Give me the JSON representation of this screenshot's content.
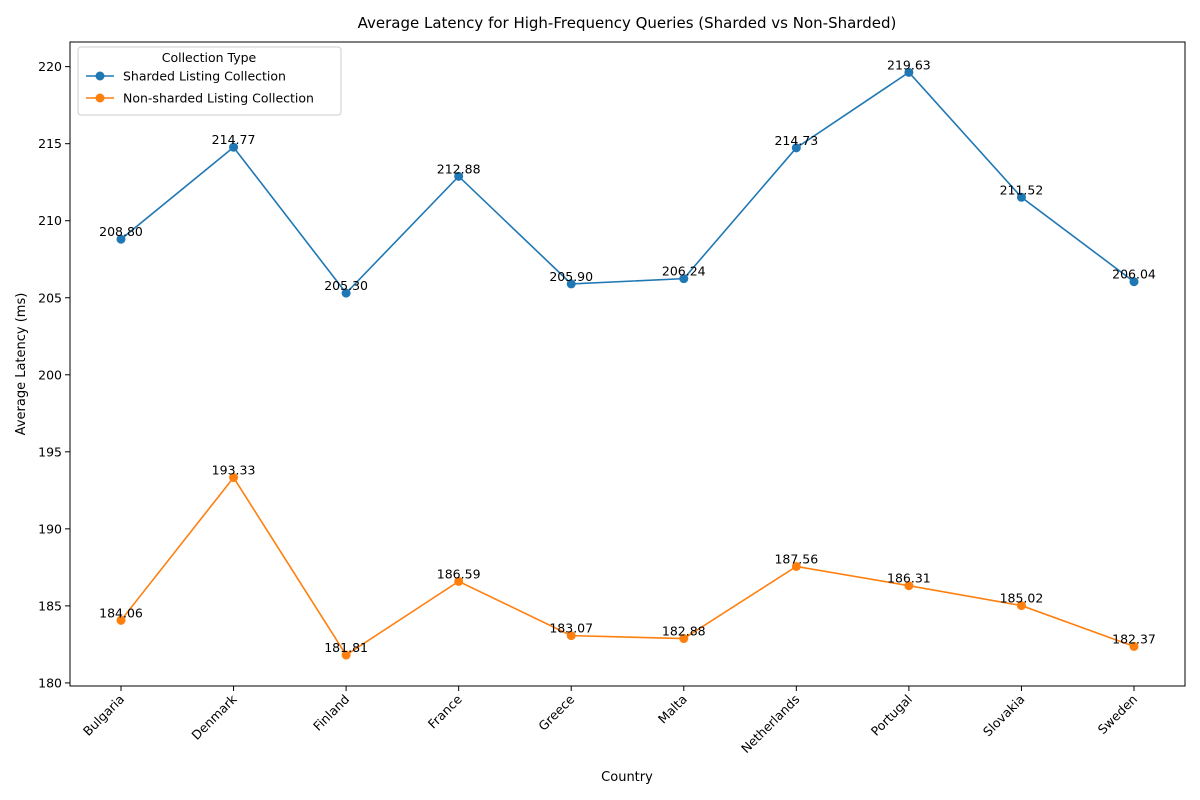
{
  "chart_data": {
    "type": "line",
    "title": "Average Latency for High-Frequency Queries (Sharded vs Non-Sharded)",
    "xlabel": "Country",
    "ylabel": "Average Latency (ms)",
    "categories": [
      "Bulgaria",
      "Denmark",
      "Finland",
      "France",
      "Greece",
      "Malta",
      "Netherlands",
      "Portugal",
      "Slovakia",
      "Sweden"
    ],
    "ylim": [
      179.8,
      221.6
    ],
    "yticks": [
      180,
      185,
      190,
      195,
      200,
      205,
      210,
      215,
      220
    ],
    "grid": false,
    "legend": {
      "title": "Collection Type",
      "placement": "top-left"
    },
    "series": [
      {
        "name": "Sharded Listing Collection",
        "color": "#1f77b4",
        "values": [
          208.8,
          214.77,
          205.3,
          212.88,
          205.9,
          206.24,
          214.73,
          219.63,
          211.52,
          206.04
        ],
        "labels": [
          "208.80",
          "214.77",
          "205.30",
          "212.88",
          "205.90",
          "206.24",
          "214.73",
          "219.63",
          "211.52",
          "206.04"
        ]
      },
      {
        "name": "Non-sharded Listing Collection",
        "color": "#ff7f0e",
        "values": [
          184.06,
          193.33,
          181.81,
          186.59,
          183.07,
          182.88,
          187.56,
          186.31,
          185.02,
          182.37
        ],
        "labels": [
          "184.06",
          "193.33",
          "181.81",
          "186.59",
          "183.07",
          "182.88",
          "187.56",
          "186.31",
          "185.02",
          "182.37"
        ]
      }
    ]
  }
}
